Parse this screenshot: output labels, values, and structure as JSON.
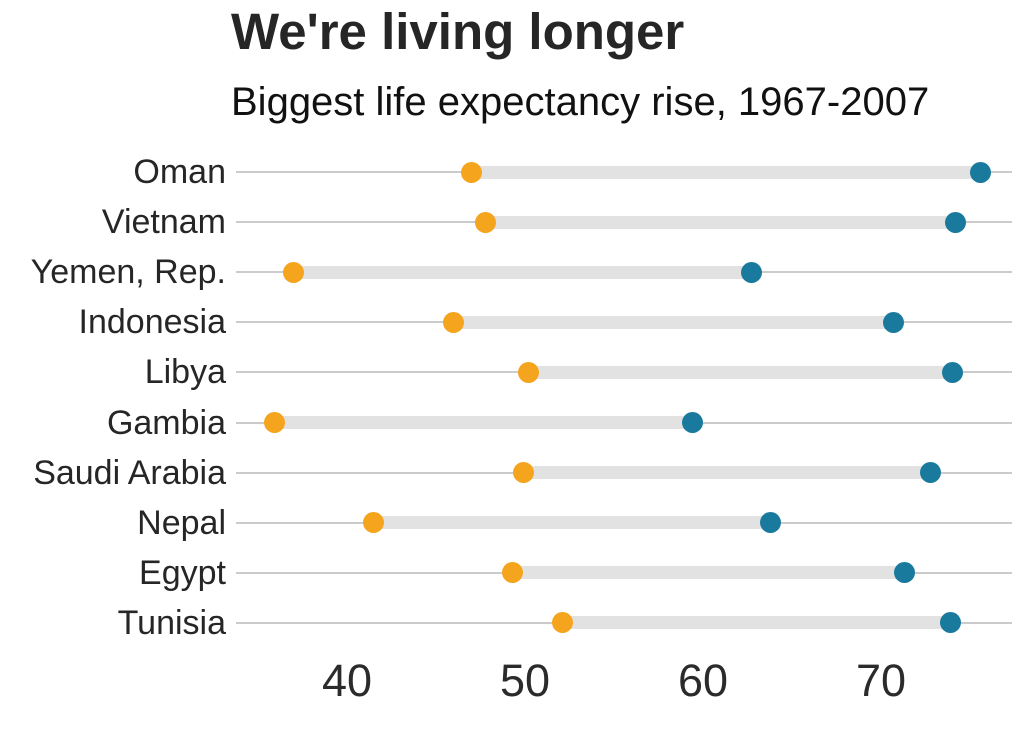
{
  "header": {
    "title": "We're living longer",
    "subtitle": "Biggest life expectancy rise, 1967-2007"
  },
  "chart_data": {
    "type": "dumbbell",
    "title": "We're living longer",
    "subtitle": "Biggest life expectancy rise, 1967-2007",
    "xlabel": "",
    "ylabel": "",
    "x_ticks": [
      40,
      50,
      60,
      70
    ],
    "xlim": [
      33.7,
      77.6
    ],
    "grid": false,
    "legend_position": "none",
    "categories": [
      "Oman",
      "Vietnam",
      "Yemen, Rep.",
      "Indonesia",
      "Libya",
      "Gambia",
      "Saudi Arabia",
      "Nepal",
      "Egypt",
      "Tunisia"
    ],
    "series": [
      {
        "name": "1967",
        "color": "#f5a41d",
        "values": [
          47.0,
          47.8,
          37.0,
          46.0,
          50.2,
          35.9,
          49.9,
          41.5,
          49.3,
          52.1
        ]
      },
      {
        "name": "2007",
        "color": "#1a7a9d",
        "values": [
          75.6,
          74.2,
          62.7,
          70.7,
          74.0,
          59.4,
          72.8,
          63.8,
          71.3,
          73.9
        ]
      }
    ]
  },
  "colors": {
    "background": "#ffffff",
    "baseline": "#cbcbcb",
    "band": "#e2e2e2",
    "text": "#262626",
    "dot_1967": "#f5a41d",
    "dot_2007": "#1a7a9d"
  }
}
